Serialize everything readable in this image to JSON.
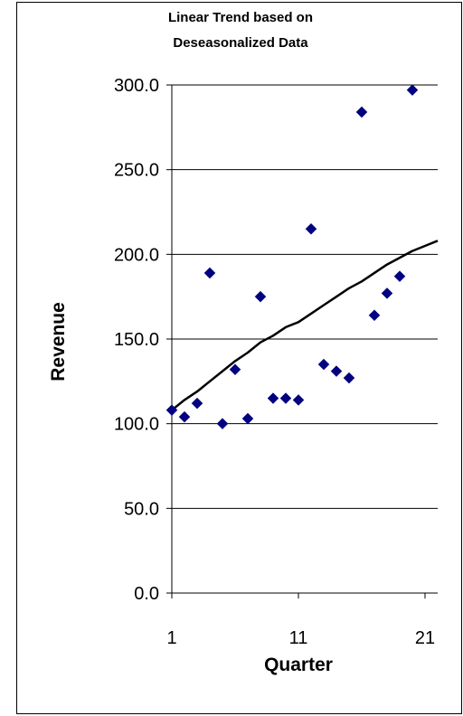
{
  "chart_data": {
    "type": "scatter",
    "title": "Linear Trend based on Deseasonalized Data",
    "title_lines": [
      "Linear Trend based on",
      "Deseasonalized Data"
    ],
    "xlabel": "Quarter",
    "ylabel": "Revenue",
    "xlim": [
      1,
      22
    ],
    "ylim": [
      0,
      300
    ],
    "x_ticks": [
      1,
      11,
      21
    ],
    "x_tick_labels": [
      "1",
      "11",
      "21"
    ],
    "y_ticks": [
      0,
      50,
      100,
      150,
      200,
      250,
      300
    ],
    "y_tick_labels": [
      "0.0",
      "50.0",
      "100.0",
      "150.0",
      "200.0",
      "250.0",
      "300.0"
    ],
    "grid": {
      "horizontal": true,
      "vertical": false
    },
    "legend": "none",
    "series": [
      {
        "type": "scatter",
        "marker": "diamond",
        "color": "#000080",
        "x": [
          1,
          2,
          3,
          4,
          5,
          6,
          7,
          8,
          9,
          10,
          11,
          12,
          13,
          14,
          15,
          16,
          17,
          18,
          19,
          20
        ],
        "y": [
          108,
          104,
          112,
          189,
          100,
          132,
          103,
          175,
          115,
          115,
          114,
          215,
          135,
          131,
          127,
          284,
          164,
          177,
          187,
          297
        ]
      },
      {
        "type": "line",
        "color": "#000000",
        "x": [
          1,
          2,
          3,
          4,
          5,
          6,
          7,
          8,
          9,
          10,
          11,
          12,
          13,
          14,
          15,
          16,
          17,
          18,
          19,
          20,
          21,
          22
        ],
        "y": [
          108,
          114,
          119,
          125,
          131,
          137,
          142,
          148,
          152,
          157,
          160,
          165,
          170,
          175,
          180,
          184,
          189,
          194,
          198,
          202,
          205,
          208
        ]
      }
    ]
  }
}
